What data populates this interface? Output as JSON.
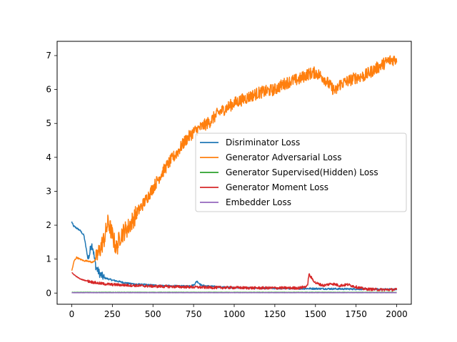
{
  "chart_data": {
    "type": "line",
    "title": "",
    "xlabel": "",
    "ylabel": "",
    "xlim": [
      -90,
      2090
    ],
    "ylim": [
      -0.33,
      7.42
    ],
    "xticks": [
      0,
      250,
      500,
      750,
      1000,
      1250,
      1500,
      1750,
      2000
    ],
    "yticks": [
      0,
      1,
      2,
      3,
      4,
      5,
      6,
      7
    ],
    "grid": false,
    "legend_position": "center-right",
    "series": [
      {
        "name": "Disriminator Loss",
        "color": "#1f77b4",
        "x": [
          0,
          10,
          25,
          50,
          75,
          100,
          110,
          120,
          130,
          140,
          150,
          175,
          200,
          250,
          300,
          350,
          400,
          500,
          600,
          700,
          750,
          770,
          800,
          900,
          1000,
          1200,
          1500,
          1700,
          2000
        ],
        "y": [
          2.1,
          1.98,
          1.93,
          1.85,
          1.7,
          1.0,
          1.15,
          1.45,
          1.35,
          1.0,
          0.75,
          0.55,
          0.45,
          0.38,
          0.33,
          0.28,
          0.26,
          0.23,
          0.21,
          0.2,
          0.23,
          0.35,
          0.22,
          0.18,
          0.16,
          0.14,
          0.13,
          0.12,
          0.11
        ]
      },
      {
        "name": "Generator Adversarial Loss",
        "color": "#ff7f0e",
        "x": [
          0,
          15,
          30,
          50,
          75,
          100,
          125,
          150,
          175,
          200,
          225,
          250,
          275,
          300,
          350,
          400,
          450,
          500,
          550,
          600,
          650,
          700,
          750,
          800,
          850,
          900,
          950,
          1000,
          1050,
          1100,
          1150,
          1200,
          1250,
          1300,
          1350,
          1400,
          1450,
          1500,
          1550,
          1600,
          1625,
          1650,
          1700,
          1750,
          1800,
          1850,
          1900,
          1950,
          2000
        ],
        "y": [
          0.65,
          0.95,
          1.05,
          1.0,
          0.95,
          0.95,
          0.9,
          1.0,
          1.3,
          1.6,
          2.1,
          1.7,
          1.3,
          1.7,
          1.95,
          2.35,
          2.7,
          3.1,
          3.5,
          3.85,
          4.15,
          4.5,
          4.75,
          4.9,
          5.05,
          5.3,
          5.45,
          5.6,
          5.7,
          5.8,
          5.9,
          5.95,
          6.0,
          6.15,
          6.25,
          6.3,
          6.45,
          6.5,
          6.35,
          6.05,
          5.95,
          6.15,
          6.25,
          6.35,
          6.4,
          6.55,
          6.7,
          6.85,
          6.9
        ]
      },
      {
        "name": "Generator Supervised(Hidden) Loss",
        "color": "#2ca02c",
        "x": [
          0,
          500,
          1000,
          1500,
          2000
        ],
        "y": [
          0.02,
          0.02,
          0.02,
          0.02,
          0.02
        ]
      },
      {
        "name": "Generator Moment Loss",
        "color": "#d62728",
        "x": [
          0,
          25,
          50,
          75,
          100,
          150,
          200,
          250,
          300,
          400,
          500,
          600,
          700,
          800,
          900,
          1000,
          1100,
          1200,
          1300,
          1400,
          1450,
          1460,
          1475,
          1500,
          1550,
          1600,
          1650,
          1700,
          1750,
          1800,
          1900,
          2000
        ],
        "y": [
          0.6,
          0.5,
          0.42,
          0.38,
          0.35,
          0.3,
          0.27,
          0.25,
          0.24,
          0.22,
          0.2,
          0.19,
          0.18,
          0.17,
          0.16,
          0.16,
          0.15,
          0.15,
          0.15,
          0.15,
          0.2,
          0.55,
          0.45,
          0.3,
          0.22,
          0.28,
          0.22,
          0.25,
          0.18,
          0.12,
          0.1,
          0.1
        ]
      },
      {
        "name": "Embedder Loss",
        "color": "#9467bd",
        "x": [
          0,
          500,
          1000,
          1500,
          2000
        ],
        "y": [
          0.01,
          0.01,
          0.01,
          0.01,
          0.01
        ]
      }
    ]
  }
}
